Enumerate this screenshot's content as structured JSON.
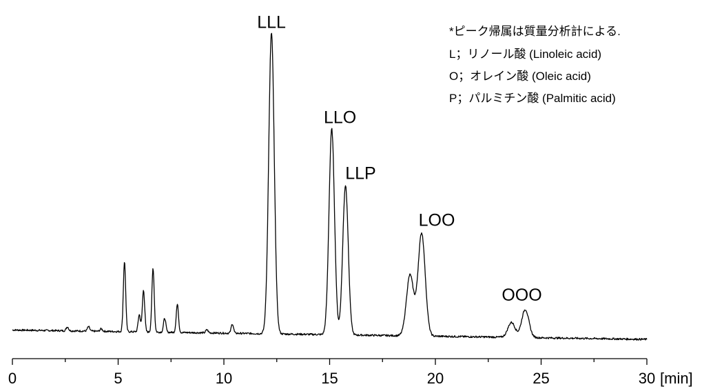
{
  "chart_data": {
    "type": "line",
    "xlim": [
      0,
      30
    ],
    "x_unit": "[min]",
    "x_ticks": [
      0,
      5,
      10,
      15,
      20,
      25,
      30
    ],
    "x_tick_labels": [
      "0",
      "5",
      "10",
      "15",
      "20",
      "25",
      "30"
    ],
    "y_axis_visible": false,
    "grid": false,
    "legend_placement": "top-right",
    "legend_lines": [
      "*ピーク帰属は質量分析計による.",
      "L；リノール酸  (Linoleic acid)",
      "O；オレイン酸  (Oleic acid)",
      "P；パルミチン酸  (Palmitic acid)"
    ],
    "baseline": {
      "x": [
        0,
        30
      ],
      "y": [
        0.03,
        0.0
      ]
    },
    "peaks": [
      {
        "label": "",
        "time": 2.6,
        "height": 0.013
      },
      {
        "label": "",
        "time": 3.6,
        "height": 0.014
      },
      {
        "label": "",
        "time": 4.2,
        "height": 0.008
      },
      {
        "label": "",
        "time": 5.3,
        "height": 0.225
      },
      {
        "label": "",
        "time": 6.0,
        "height": 0.055
      },
      {
        "label": "",
        "time": 6.2,
        "height": 0.135
      },
      {
        "label": "",
        "time": 6.65,
        "height": 0.205
      },
      {
        "label": "",
        "time": 7.2,
        "height": 0.045
      },
      {
        "label": "",
        "time": 7.8,
        "height": 0.09
      },
      {
        "label": "",
        "time": 9.2,
        "height": 0.01
      },
      {
        "label": "",
        "time": 10.4,
        "height": 0.03
      },
      {
        "label": "LLL",
        "time": 12.25,
        "height": 0.965
      },
      {
        "label": "LLO",
        "time": 15.1,
        "height": 0.66
      },
      {
        "label": "LLP",
        "time": 15.75,
        "height": 0.48
      },
      {
        "label": "",
        "time": 18.8,
        "height": 0.195
      },
      {
        "label": "LOO",
        "time": 19.35,
        "height": 0.33
      },
      {
        "label": "",
        "time": 23.6,
        "height": 0.048
      },
      {
        "label": "OOO",
        "time": 24.25,
        "height": 0.09
      }
    ]
  }
}
